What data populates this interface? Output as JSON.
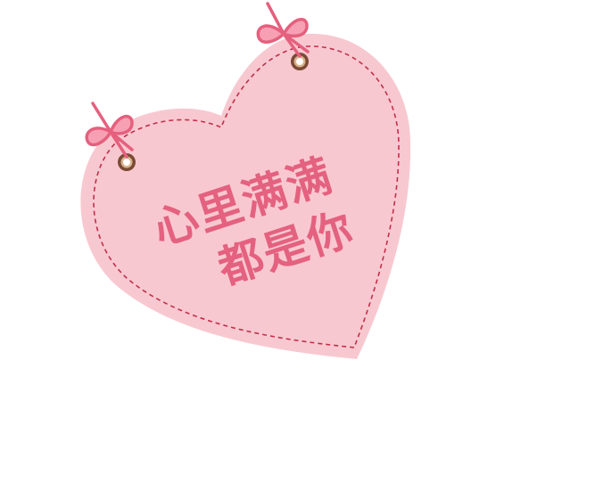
{
  "tag": {
    "line1": "心里满满",
    "line2": "都是你"
  },
  "colors": {
    "heart_fill": "#f8c8d0",
    "stitch": "#c0304a",
    "text": "#e4617f",
    "ribbon": "#e5607e",
    "grommet_ring": "#7a4a35",
    "background": "#ffffff"
  },
  "icons": [
    "heart-tag-shape",
    "bow-ribbon-icon",
    "grommet-icon"
  ]
}
